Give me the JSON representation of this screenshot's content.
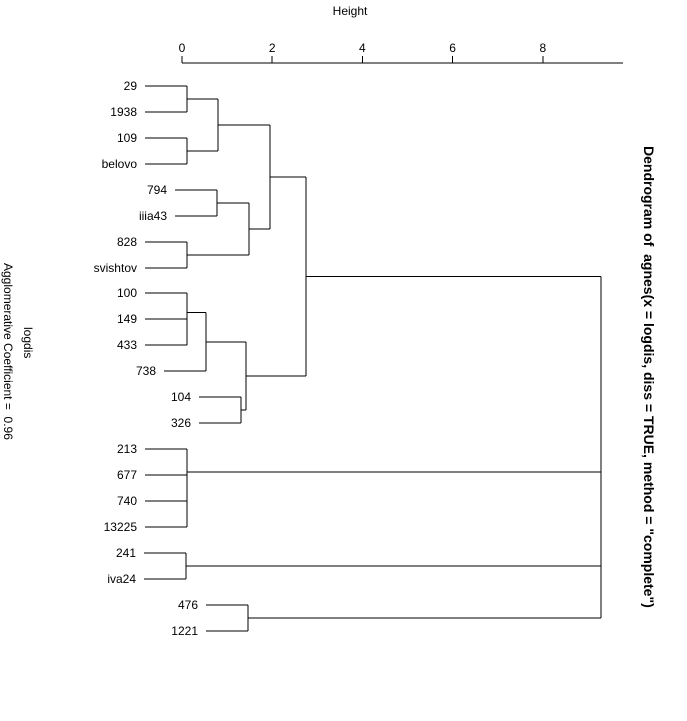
{
  "chart_data": {
    "type": "dendrogram",
    "orientation": "horizontal-left-labels",
    "title": "Dendrogram of  agnes(x = logdis, diss = TRUE, method = \"complete\")",
    "axis_label": "Height",
    "axis_ticks": [
      0,
      2,
      4,
      6,
      8
    ],
    "axis_range": [
      0,
      9.78
    ],
    "xlab": "logdis",
    "subtitle": "Agglomerative Coefficient =  0.96",
    "grid": false,
    "legend": "none",
    "line_color": "#000000",
    "leaf_order": [
      "29",
      "1938",
      "109",
      "belovo",
      "794",
      "iiia43",
      "828",
      "svishtov",
      "100",
      "149",
      "433",
      "738",
      "104",
      "326",
      "213",
      "677",
      "740",
      "13225",
      "241",
      "iva24",
      "476",
      "1221"
    ],
    "tree": {
      "h": 9.29,
      "children": [
        {
          "h": 9.29,
          "children": [
            {
              "h": 9.29,
              "children": [
                {
                  "h": 2.76,
                  "children": [
                    {
                      "h": 1.95,
                      "children": [
                        {
                          "h": 0.8,
                          "children": [
                            {
                              "h": 0.11,
                              "children": [
                                "29",
                                "1938"
                              ]
                            },
                            {
                              "h": 0.11,
                              "children": [
                                "109",
                                "belovo"
                              ]
                            }
                          ]
                        },
                        {
                          "h": 1.48,
                          "children": [
                            {
                              "h": 0.78,
                              "children": [
                                "794",
                                "iiia43"
                              ]
                            },
                            {
                              "h": 0.11,
                              "children": [
                                "828",
                                "svishtov"
                              ]
                            }
                          ]
                        }
                      ]
                    },
                    {
                      "h": 1.42,
                      "children": [
                        {
                          "h": 0.53,
                          "children": [
                            {
                              "h": 0.11,
                              "children": [
                                "100",
                                {
                                  "h": 0.11,
                                  "children": [
                                    "149",
                                    "433"
                                  ]
                                }
                              ]
                            },
                            "738"
                          ]
                        },
                        {
                          "h": 1.31,
                          "children": [
                            "104",
                            "326"
                          ]
                        }
                      ]
                    }
                  ]
                },
                {
                  "h": 0.1,
                  "children": [
                    "213",
                    {
                      "h": 0.1,
                      "children": [
                        "677",
                        {
                          "h": 0.1,
                          "children": [
                            "740",
                            "13225"
                          ]
                        }
                      ]
                    }
                  ]
                }
              ]
            },
            {
              "h": 0.08,
              "children": [
                "241",
                "iva24"
              ]
            }
          ]
        },
        {
          "h": 1.46,
          "children": [
            "476",
            "1221"
          ]
        }
      ]
    }
  }
}
